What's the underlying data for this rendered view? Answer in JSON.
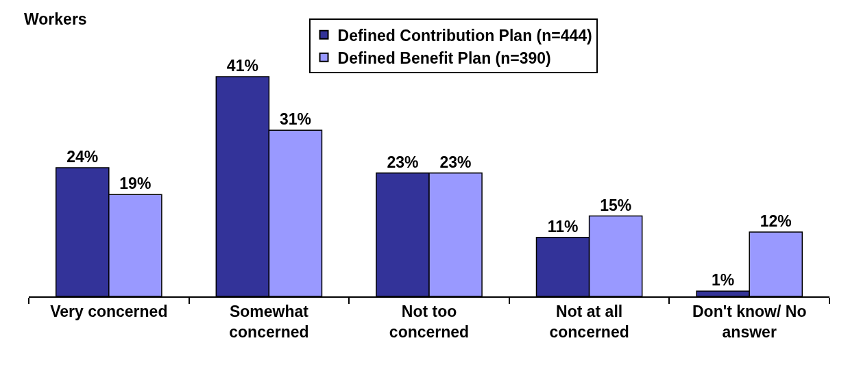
{
  "chart_data": {
    "type": "bar",
    "title": "Workers",
    "categories": [
      "Very concerned",
      "Somewhat concerned",
      "Not too concerned",
      "Not at all concerned",
      "Don't know/ No answer"
    ],
    "series": [
      {
        "name": "Defined Contribution Plan (n=444)",
        "color": "#333399",
        "values": [
          24,
          41,
          23,
          11,
          1
        ],
        "value_labels": [
          "24%",
          "41%",
          "23%",
          "11%",
          "1%"
        ]
      },
      {
        "name": "Defined Benefit Plan (n=390)",
        "color": "#9999ff",
        "values": [
          19,
          31,
          23,
          15,
          12
        ],
        "value_labels": [
          "19%",
          "31%",
          "23%",
          "15%",
          "12%"
        ]
      }
    ],
    "legend": "top",
    "grid": false,
    "tick_labels": "x"
  }
}
